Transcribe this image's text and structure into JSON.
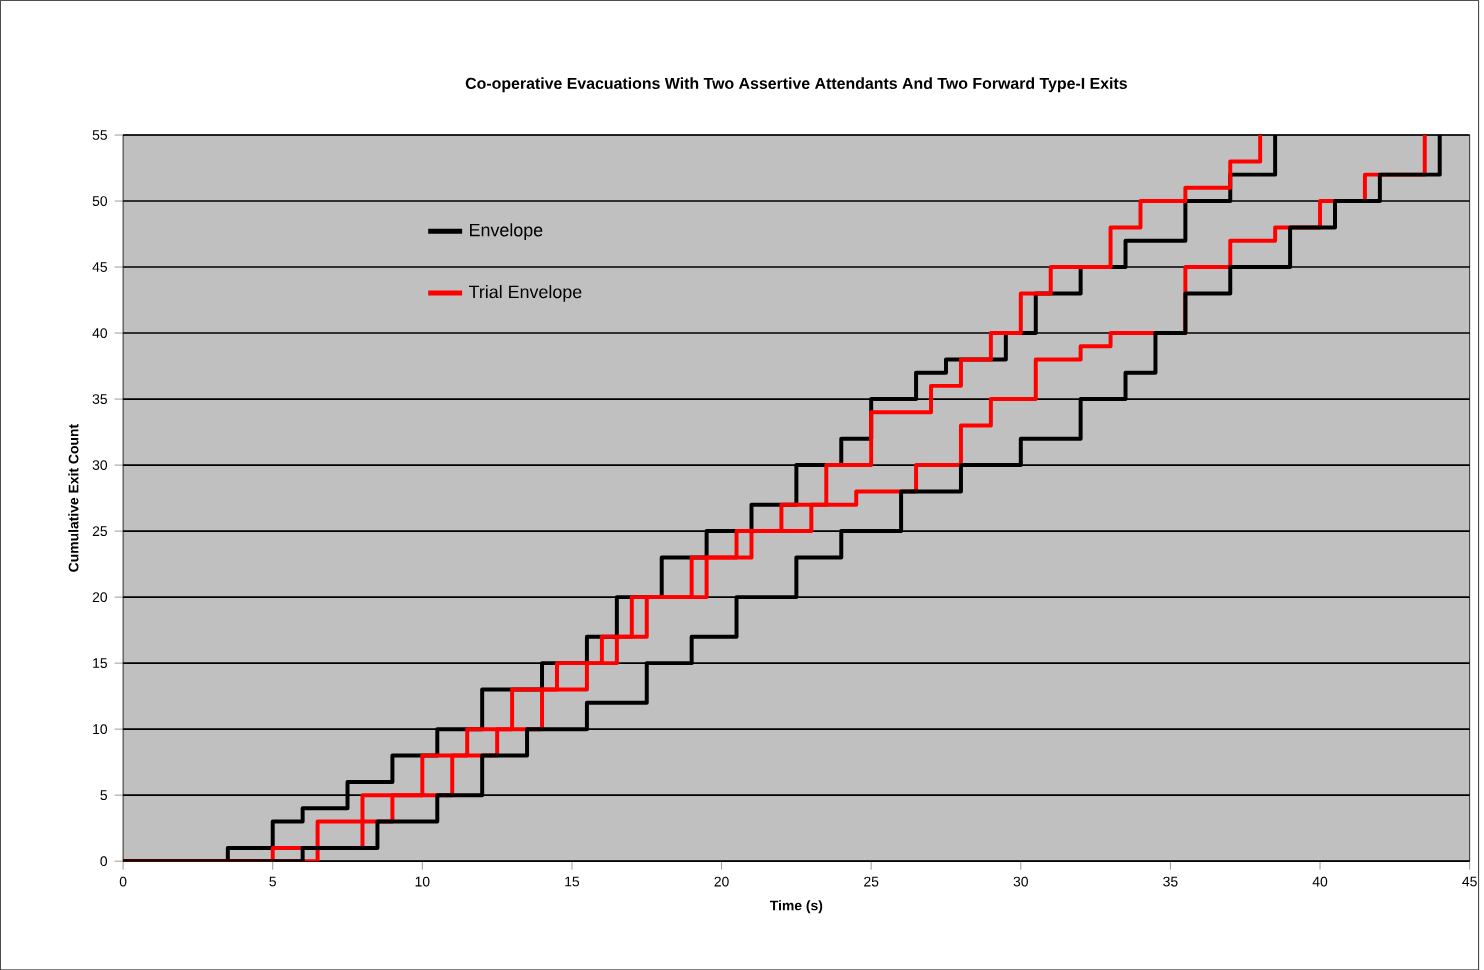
{
  "chart_data": {
    "type": "step",
    "title": "Co-operative Evacuations With Two Assertive Attendants And Two Forward Type-I Exits",
    "xlabel": "Time (s)",
    "ylabel": "Cumulative Exit Count",
    "xlim": [
      0,
      45
    ],
    "xticks": [
      0,
      5,
      10,
      15,
      20,
      25,
      30,
      35,
      40,
      45
    ],
    "ylim": [
      0,
      55
    ],
    "yticks": [
      0,
      5,
      10,
      15,
      20,
      25,
      30,
      35,
      40,
      45,
      50,
      55
    ],
    "grid": "y",
    "legend": "top left",
    "line_style": "solid",
    "marker": "none",
    "series": [
      {
        "name": "Envelope",
        "color": "#000000",
        "x": [
          0,
          3.5,
          5,
          6,
          7.5,
          9,
          10.5,
          12,
          14,
          15.5,
          16.5,
          18,
          19.5,
          21,
          22.5,
          24,
          25,
          26.5,
          27.5,
          29.5,
          30.5,
          32,
          33.5,
          35.5,
          37,
          38.5
        ],
        "values": [
          0,
          1,
          3,
          4,
          6,
          8,
          10,
          13,
          15,
          17,
          20,
          23,
          25,
          27,
          30,
          32,
          35,
          37,
          38,
          40,
          43,
          45,
          47,
          50,
          52,
          55
        ]
      },
      {
        "name": "Trial Envelope",
        "color": "#ff0000",
        "x": [
          0,
          5,
          6.5,
          8,
          10,
          11.5,
          13,
          14.5,
          16,
          17,
          19,
          20.5,
          22,
          23.5,
          25,
          27,
          28,
          29,
          30,
          31,
          33,
          34,
          35.5,
          37,
          38
        ],
        "values": [
          0,
          1,
          3,
          5,
          8,
          10,
          13,
          15,
          17,
          20,
          23,
          25,
          27,
          30,
          34,
          36,
          38,
          40,
          43,
          45,
          48,
          50,
          51,
          53,
          55
        ]
      },
      {
        "color": "#ff0000",
        "x": [
          0,
          6.5,
          8,
          9,
          11,
          12.5,
          14,
          15.5,
          16.5,
          17.5,
          19.5,
          21,
          23,
          24.5,
          26.5,
          28,
          29,
          30.5,
          32,
          33,
          35.5,
          37,
          38.5,
          40,
          41.5,
          43.5
        ],
        "values": [
          0,
          1,
          3,
          5,
          8,
          10,
          13,
          15,
          17,
          20,
          23,
          25,
          27,
          28,
          30,
          33,
          35,
          38,
          39,
          40,
          45,
          47,
          48,
          50,
          52,
          55
        ]
      },
      {
        "color": "#000000",
        "x": [
          0,
          6,
          8.5,
          10.5,
          12,
          13.5,
          15.5,
          17.5,
          19,
          20.5,
          22.5,
          24,
          26,
          28,
          30,
          32,
          33.5,
          34.5,
          35.5,
          37,
          39,
          40.5,
          42,
          44
        ],
        "values": [
          0,
          1,
          3,
          5,
          8,
          10,
          12,
          15,
          17,
          20,
          23,
          25,
          28,
          30,
          32,
          35,
          37,
          40,
          43,
          45,
          48,
          50,
          52,
          55
        ]
      }
    ]
  }
}
